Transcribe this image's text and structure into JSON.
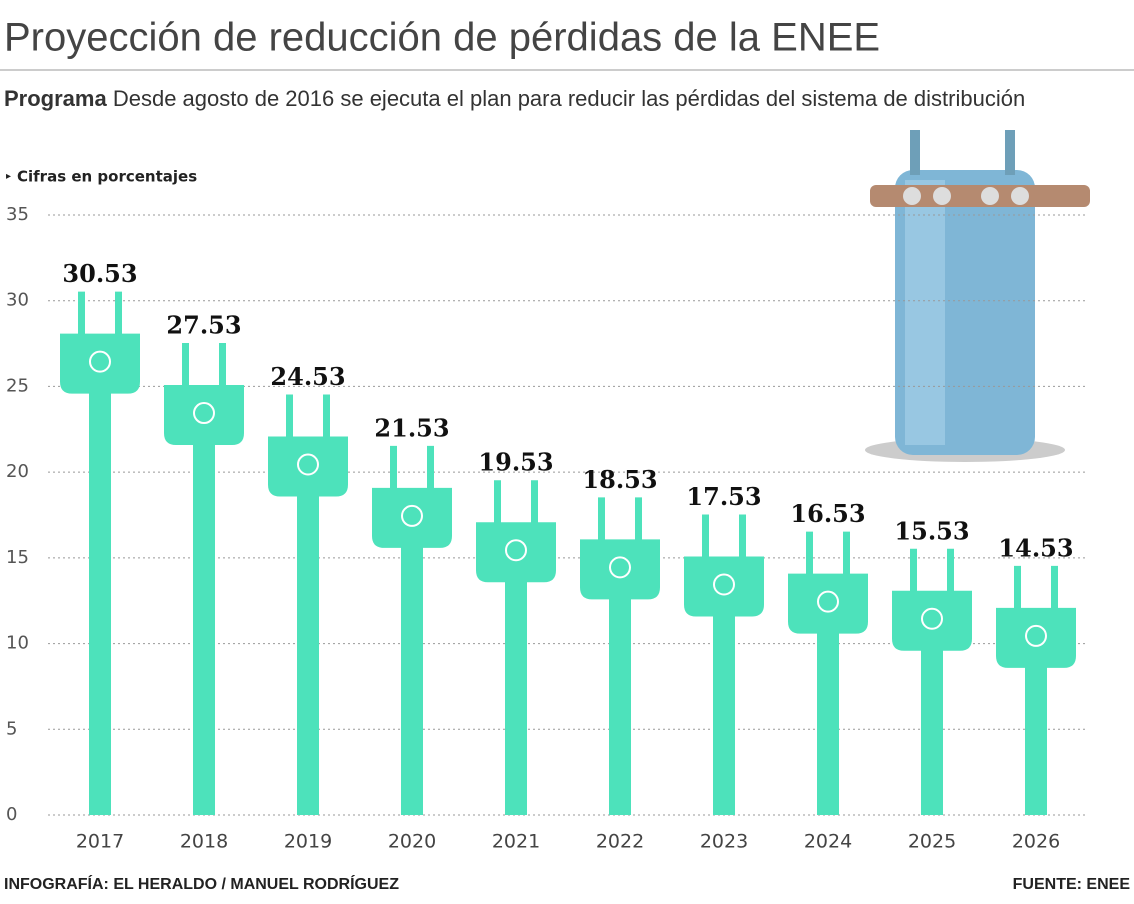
{
  "chart_data": {
    "type": "bar",
    "title": "Proyección de reducción de pérdidas de la ENEE",
    "subtitle_bold": "Programa",
    "subtitle": "Desde agosto de 2016 se ejecuta el plan para reducir las pérdidas del sistema de distribución",
    "note": "Cifras en porcentajes",
    "credit": "INFOGRAFÍA: EL HERALDO / MANUEL RODRÍGUEZ",
    "source": "FUENTE: ENEE",
    "categories": [
      "2017",
      "2018",
      "2019",
      "2020",
      "2021",
      "2022",
      "2023",
      "2024",
      "2025",
      "2026"
    ],
    "values": [
      30.53,
      27.53,
      24.53,
      21.53,
      19.53,
      18.53,
      17.53,
      16.53,
      15.53,
      14.53
    ],
    "color": "#4de2bb",
    "ylim": [
      0,
      35
    ],
    "yticks": [
      0,
      5,
      10,
      15,
      20,
      25,
      30,
      35
    ],
    "grid": true
  }
}
